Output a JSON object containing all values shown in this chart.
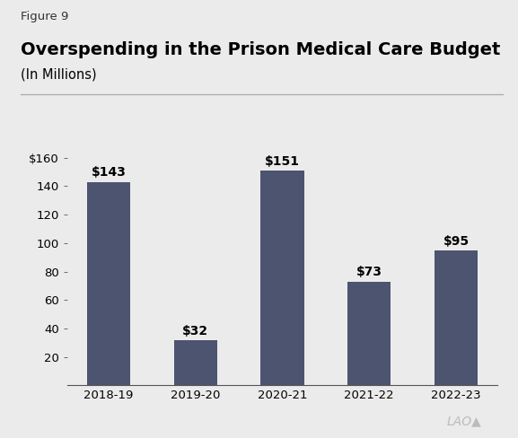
{
  "figure_label": "Figure 9",
  "title": "Overspending in the Prison Medical Care Budget",
  "subtitle": "(In Millions)",
  "categories": [
    "2018-19",
    "2019-20",
    "2020-21",
    "2021-22",
    "2022-23"
  ],
  "values": [
    143,
    32,
    151,
    73,
    95
  ],
  "bar_color": "#4d5470",
  "background_color": "#ebebeb",
  "ylim": [
    0,
    160
  ],
  "yticks": [
    20,
    40,
    60,
    80,
    100,
    120,
    140,
    160
  ],
  "bar_labels": [
    "$143",
    "$32",
    "$151",
    "$73",
    "$95"
  ],
  "title_fontsize": 14,
  "subtitle_fontsize": 10.5,
  "figure_label_fontsize": 9.5,
  "tick_fontsize": 9.5,
  "bar_label_fontsize": 10,
  "lao_text": "LAO",
  "lao_arrow": "→"
}
